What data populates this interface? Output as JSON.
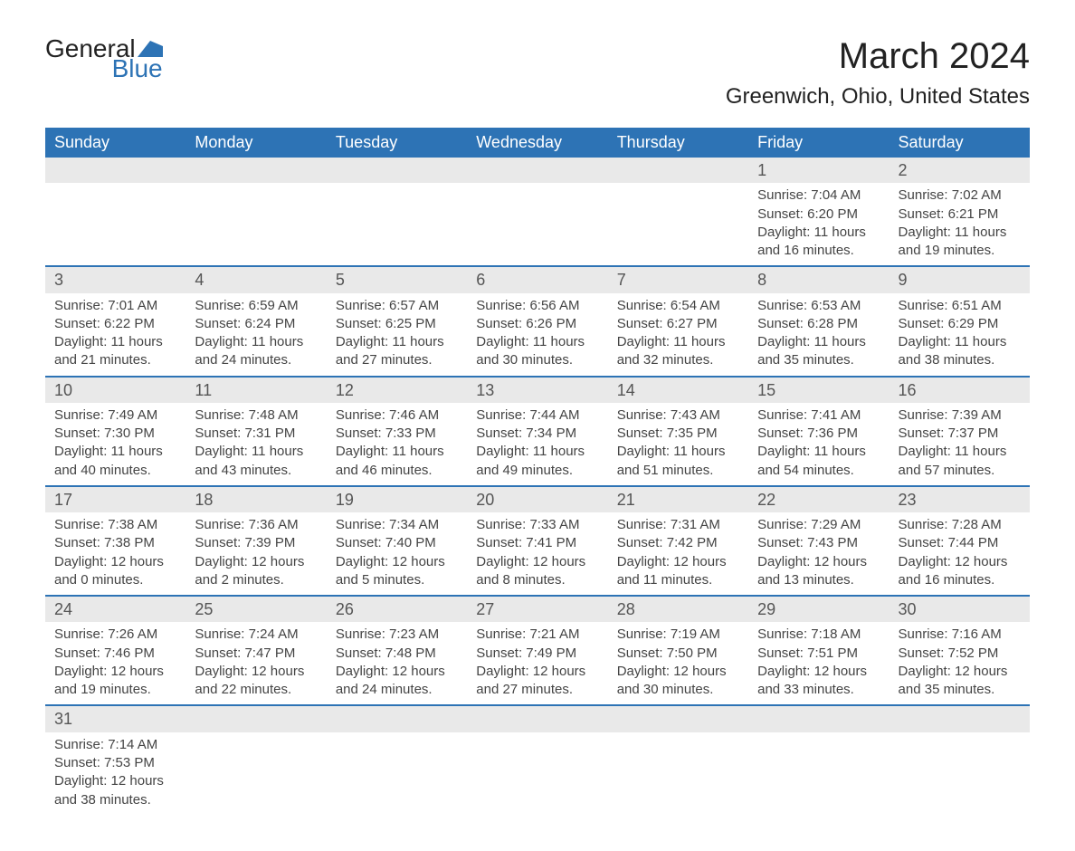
{
  "logo": {
    "word1": "General",
    "word2": "Blue",
    "shape_color": "#2d73b5"
  },
  "title": "March 2024",
  "subtitle": "Greenwich, Ohio, United States",
  "colors": {
    "header_bg": "#2d73b5",
    "header_text": "#ffffff",
    "daynum_bg": "#e9e9e9",
    "row_divider": "#2d73b5",
    "text": "#444444",
    "page_bg": "#ffffff"
  },
  "fonts": {
    "title_size": 40,
    "subtitle_size": 24,
    "dayname_size": 18,
    "daynum_size": 18,
    "body_size": 15
  },
  "day_names": [
    "Sunday",
    "Monday",
    "Tuesday",
    "Wednesday",
    "Thursday",
    "Friday",
    "Saturday"
  ],
  "weeks": [
    [
      null,
      null,
      null,
      null,
      null,
      {
        "n": "1",
        "sr": "Sunrise: 7:04 AM",
        "ss": "Sunset: 6:20 PM",
        "d1": "Daylight: 11 hours",
        "d2": "and 16 minutes."
      },
      {
        "n": "2",
        "sr": "Sunrise: 7:02 AM",
        "ss": "Sunset: 6:21 PM",
        "d1": "Daylight: 11 hours",
        "d2": "and 19 minutes."
      }
    ],
    [
      {
        "n": "3",
        "sr": "Sunrise: 7:01 AM",
        "ss": "Sunset: 6:22 PM",
        "d1": "Daylight: 11 hours",
        "d2": "and 21 minutes."
      },
      {
        "n": "4",
        "sr": "Sunrise: 6:59 AM",
        "ss": "Sunset: 6:24 PM",
        "d1": "Daylight: 11 hours",
        "d2": "and 24 minutes."
      },
      {
        "n": "5",
        "sr": "Sunrise: 6:57 AM",
        "ss": "Sunset: 6:25 PM",
        "d1": "Daylight: 11 hours",
        "d2": "and 27 minutes."
      },
      {
        "n": "6",
        "sr": "Sunrise: 6:56 AM",
        "ss": "Sunset: 6:26 PM",
        "d1": "Daylight: 11 hours",
        "d2": "and 30 minutes."
      },
      {
        "n": "7",
        "sr": "Sunrise: 6:54 AM",
        "ss": "Sunset: 6:27 PM",
        "d1": "Daylight: 11 hours",
        "d2": "and 32 minutes."
      },
      {
        "n": "8",
        "sr": "Sunrise: 6:53 AM",
        "ss": "Sunset: 6:28 PM",
        "d1": "Daylight: 11 hours",
        "d2": "and 35 minutes."
      },
      {
        "n": "9",
        "sr": "Sunrise: 6:51 AM",
        "ss": "Sunset: 6:29 PM",
        "d1": "Daylight: 11 hours",
        "d2": "and 38 minutes."
      }
    ],
    [
      {
        "n": "10",
        "sr": "Sunrise: 7:49 AM",
        "ss": "Sunset: 7:30 PM",
        "d1": "Daylight: 11 hours",
        "d2": "and 40 minutes."
      },
      {
        "n": "11",
        "sr": "Sunrise: 7:48 AM",
        "ss": "Sunset: 7:31 PM",
        "d1": "Daylight: 11 hours",
        "d2": "and 43 minutes."
      },
      {
        "n": "12",
        "sr": "Sunrise: 7:46 AM",
        "ss": "Sunset: 7:33 PM",
        "d1": "Daylight: 11 hours",
        "d2": "and 46 minutes."
      },
      {
        "n": "13",
        "sr": "Sunrise: 7:44 AM",
        "ss": "Sunset: 7:34 PM",
        "d1": "Daylight: 11 hours",
        "d2": "and 49 minutes."
      },
      {
        "n": "14",
        "sr": "Sunrise: 7:43 AM",
        "ss": "Sunset: 7:35 PM",
        "d1": "Daylight: 11 hours",
        "d2": "and 51 minutes."
      },
      {
        "n": "15",
        "sr": "Sunrise: 7:41 AM",
        "ss": "Sunset: 7:36 PM",
        "d1": "Daylight: 11 hours",
        "d2": "and 54 minutes."
      },
      {
        "n": "16",
        "sr": "Sunrise: 7:39 AM",
        "ss": "Sunset: 7:37 PM",
        "d1": "Daylight: 11 hours",
        "d2": "and 57 minutes."
      }
    ],
    [
      {
        "n": "17",
        "sr": "Sunrise: 7:38 AM",
        "ss": "Sunset: 7:38 PM",
        "d1": "Daylight: 12 hours",
        "d2": "and 0 minutes."
      },
      {
        "n": "18",
        "sr": "Sunrise: 7:36 AM",
        "ss": "Sunset: 7:39 PM",
        "d1": "Daylight: 12 hours",
        "d2": "and 2 minutes."
      },
      {
        "n": "19",
        "sr": "Sunrise: 7:34 AM",
        "ss": "Sunset: 7:40 PM",
        "d1": "Daylight: 12 hours",
        "d2": "and 5 minutes."
      },
      {
        "n": "20",
        "sr": "Sunrise: 7:33 AM",
        "ss": "Sunset: 7:41 PM",
        "d1": "Daylight: 12 hours",
        "d2": "and 8 minutes."
      },
      {
        "n": "21",
        "sr": "Sunrise: 7:31 AM",
        "ss": "Sunset: 7:42 PM",
        "d1": "Daylight: 12 hours",
        "d2": "and 11 minutes."
      },
      {
        "n": "22",
        "sr": "Sunrise: 7:29 AM",
        "ss": "Sunset: 7:43 PM",
        "d1": "Daylight: 12 hours",
        "d2": "and 13 minutes."
      },
      {
        "n": "23",
        "sr": "Sunrise: 7:28 AM",
        "ss": "Sunset: 7:44 PM",
        "d1": "Daylight: 12 hours",
        "d2": "and 16 minutes."
      }
    ],
    [
      {
        "n": "24",
        "sr": "Sunrise: 7:26 AM",
        "ss": "Sunset: 7:46 PM",
        "d1": "Daylight: 12 hours",
        "d2": "and 19 minutes."
      },
      {
        "n": "25",
        "sr": "Sunrise: 7:24 AM",
        "ss": "Sunset: 7:47 PM",
        "d1": "Daylight: 12 hours",
        "d2": "and 22 minutes."
      },
      {
        "n": "26",
        "sr": "Sunrise: 7:23 AM",
        "ss": "Sunset: 7:48 PM",
        "d1": "Daylight: 12 hours",
        "d2": "and 24 minutes."
      },
      {
        "n": "27",
        "sr": "Sunrise: 7:21 AM",
        "ss": "Sunset: 7:49 PM",
        "d1": "Daylight: 12 hours",
        "d2": "and 27 minutes."
      },
      {
        "n": "28",
        "sr": "Sunrise: 7:19 AM",
        "ss": "Sunset: 7:50 PM",
        "d1": "Daylight: 12 hours",
        "d2": "and 30 minutes."
      },
      {
        "n": "29",
        "sr": "Sunrise: 7:18 AM",
        "ss": "Sunset: 7:51 PM",
        "d1": "Daylight: 12 hours",
        "d2": "and 33 minutes."
      },
      {
        "n": "30",
        "sr": "Sunrise: 7:16 AM",
        "ss": "Sunset: 7:52 PM",
        "d1": "Daylight: 12 hours",
        "d2": "and 35 minutes."
      }
    ],
    [
      {
        "n": "31",
        "sr": "Sunrise: 7:14 AM",
        "ss": "Sunset: 7:53 PM",
        "d1": "Daylight: 12 hours",
        "d2": "and 38 minutes."
      },
      null,
      null,
      null,
      null,
      null,
      null
    ]
  ]
}
